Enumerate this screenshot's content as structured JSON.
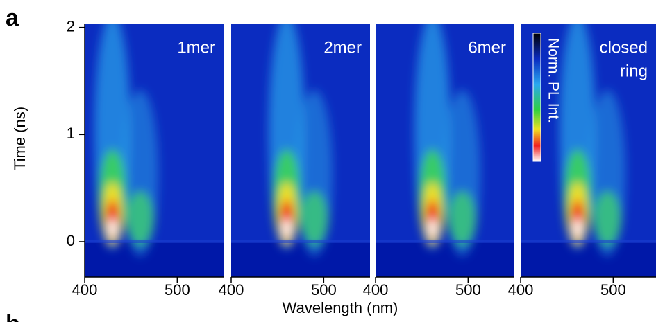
{
  "panel_label": "a",
  "next_panel_label": "b",
  "y_label": "Time (ns)",
  "x_label": "Wavelength (nm)",
  "colorbar_label": "Norm. PL Int.",
  "chart_data": [
    {
      "type": "heatmap",
      "title_lines": [
        "1mer"
      ],
      "xlim": [
        400,
        550
      ],
      "xticks": [
        400,
        500
      ],
      "ylim": [
        -0.33,
        2.03
      ],
      "yticks": [
        0,
        1,
        2
      ]
    },
    {
      "type": "heatmap",
      "title_lines": [
        "2mer"
      ],
      "xlim": [
        400,
        550
      ],
      "xticks": [
        400,
        500
      ],
      "ylim": [
        -0.33,
        2.03
      ]
    },
    {
      "type": "heatmap",
      "title_lines": [
        "6mer"
      ],
      "xlim": [
        400,
        550
      ],
      "xticks": [
        400,
        500
      ],
      "ylim": [
        -0.33,
        2.03
      ]
    },
    {
      "type": "heatmap",
      "title_lines": [
        "closed",
        "ring"
      ],
      "xlim": [
        400,
        550
      ],
      "xticks": [
        400,
        500
      ],
      "ylim": [
        -0.33,
        2.03
      ]
    }
  ]
}
